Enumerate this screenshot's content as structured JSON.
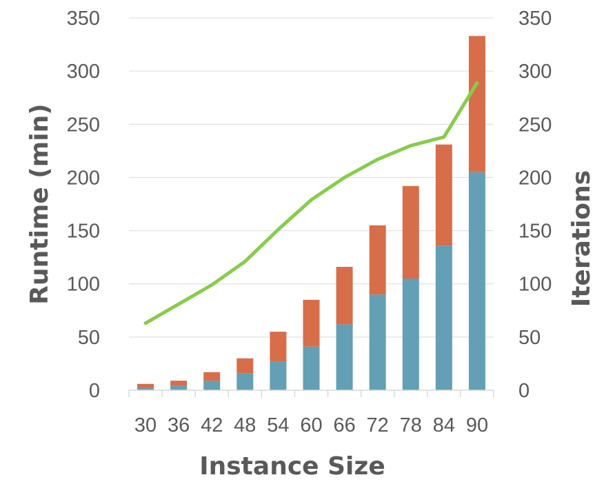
{
  "chart_data": {
    "type": "bar",
    "stacked": true,
    "xlabel": "Instance Size",
    "ylabel": "Runtime (min)",
    "y2label": "Iterations",
    "ylim": [
      0,
      350
    ],
    "y2lim": [
      0,
      350
    ],
    "y_ticks": [
      "0",
      "50",
      "100",
      "150",
      "200",
      "250",
      "300",
      "350"
    ],
    "y2_ticks": [
      "0",
      "50",
      "100",
      "150",
      "200",
      "250",
      "300",
      "350"
    ],
    "categories": [
      "30",
      "36",
      "42",
      "48",
      "54",
      "60",
      "66",
      "72",
      "78",
      "84",
      "90"
    ],
    "grid": true,
    "legend": "none",
    "series": [
      {
        "type": "bar",
        "axis": "left",
        "color": "#639fb5",
        "values": [
          2,
          4,
          9,
          16,
          27,
          41,
          62,
          90,
          105,
          136,
          205
        ]
      },
      {
        "type": "bar",
        "axis": "left",
        "color": "#d76e49",
        "values": [
          4,
          5,
          8,
          14,
          28,
          44,
          54,
          65,
          87,
          95,
          128
        ]
      },
      {
        "type": "line",
        "axis": "right",
        "color": "#86cd4b",
        "values": [
          63,
          81,
          99,
          121,
          151,
          179,
          200,
          217,
          230,
          238,
          289
        ]
      }
    ]
  }
}
